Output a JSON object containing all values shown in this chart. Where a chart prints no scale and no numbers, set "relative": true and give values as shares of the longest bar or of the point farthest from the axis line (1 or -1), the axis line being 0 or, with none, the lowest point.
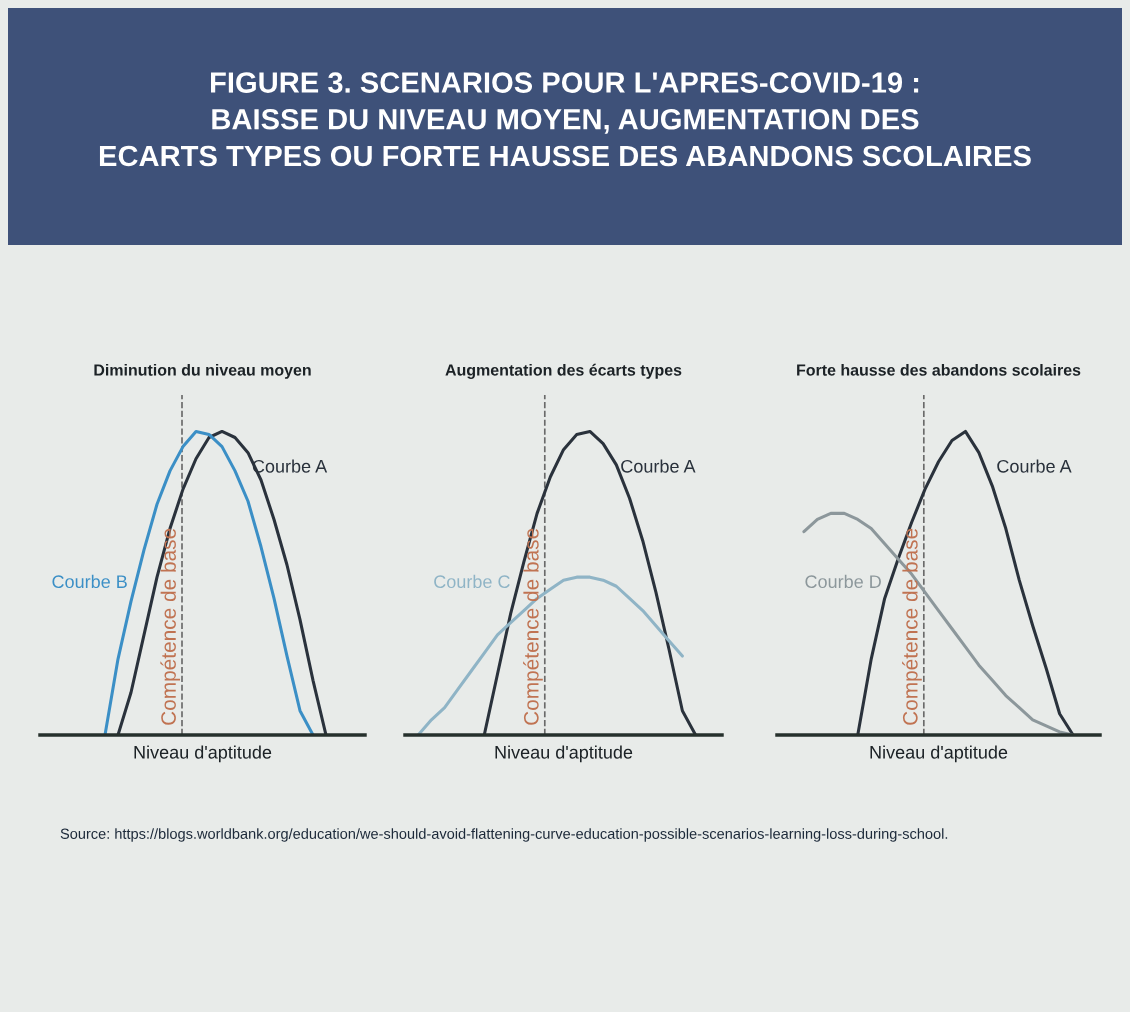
{
  "chart_data": [
    {
      "type": "other",
      "title": "FIGURE 3. SCENARIOS POUR L'APRES-COVID-19 :\nBAISSE DU NIVEAU MOYEN, AUGMENTATION DES\nECARTS TYPES OU FORTE HAUSSE DES ABANDONS SCOLAIRES"
    },
    {
      "type": "line",
      "title": "Diminution du niveau moyen",
      "xlabel": "Niveau d'aptitude",
      "relative": true,
      "grid": false,
      "categories": [
        null,
        null,
        null,
        null,
        null,
        null,
        null,
        null,
        null,
        null,
        null,
        null,
        null,
        null,
        null,
        null,
        null,
        null,
        null,
        null,
        null,
        null,
        null,
        null,
        null,
        null
      ],
      "series": [
        {
          "name": "Courbe A",
          "color": "#2a323c",
          "values": [
            null,
            null,
            null,
            null,
            null,
            null,
            0,
            0.14,
            0.33,
            0.52,
            0.68,
            0.81,
            0.91,
            0.98,
            1.0,
            0.98,
            0.93,
            0.84,
            0.71,
            0.56,
            0.38,
            0.18,
            0,
            null,
            null,
            null
          ]
        },
        {
          "name": "Courbe B",
          "color": "#3b8fc6",
          "values": [
            null,
            null,
            null,
            null,
            null,
            0,
            0.25,
            0.44,
            0.61,
            0.76,
            0.87,
            0.95,
            1.0,
            0.99,
            0.95,
            0.87,
            0.77,
            0.62,
            0.45,
            0.26,
            0.08,
            0,
            null,
            null,
            null,
            null
          ]
        }
      ],
      "annotations": [
        "Compétence de base"
      ]
    },
    {
      "type": "line",
      "title": "Augmentation des écarts types",
      "xlabel": "Niveau d'aptitude",
      "relative": true,
      "grid": false,
      "categories": [
        null,
        null,
        null,
        null,
        null,
        null,
        null,
        null,
        null,
        null,
        null,
        null,
        null,
        null,
        null,
        null,
        null,
        null,
        null,
        null,
        null,
        null,
        null,
        null,
        null
      ],
      "series": [
        {
          "name": "Courbe A",
          "color": "#2a323c",
          "values": [
            null,
            null,
            null,
            null,
            null,
            null,
            0,
            0.2,
            0.4,
            0.57,
            0.73,
            0.85,
            0.94,
            0.99,
            1.0,
            0.96,
            0.89,
            0.78,
            0.64,
            0.47,
            0.28,
            0.08,
            0,
            null,
            null
          ]
        },
        {
          "name": "Courbe C",
          "color": "#8fb4c6",
          "values": [
            null,
            0,
            0.05,
            0.09,
            0.15,
            0.21,
            0.27,
            0.33,
            0.37,
            0.41,
            0.45,
            0.48,
            0.51,
            0.52,
            0.52,
            0.51,
            0.49,
            0.45,
            0.41,
            0.36,
            0.31,
            0.26,
            null,
            null,
            null
          ]
        }
      ],
      "annotations": [
        "Compétence de base"
      ]
    },
    {
      "type": "line",
      "title": "Forte hausse des abandons scolaires",
      "xlabel": "Niveau d'aptitude",
      "relative": true,
      "grid": false,
      "categories": [
        null,
        null,
        null,
        null,
        null,
        null,
        null,
        null,
        null,
        null,
        null,
        null,
        null,
        null,
        null,
        null,
        null,
        null,
        null,
        null,
        null,
        null,
        null,
        null,
        null
      ],
      "series": [
        {
          "name": "Courbe A",
          "color": "#2a323c",
          "values": [
            null,
            null,
            null,
            null,
            null,
            null,
            0,
            0.25,
            0.45,
            0.58,
            0.7,
            0.81,
            0.9,
            0.97,
            1.0,
            0.93,
            0.82,
            0.68,
            0.51,
            0.36,
            0.22,
            0.07,
            0,
            null,
            null
          ]
        },
        {
          "name": "Courbe D",
          "color": "#8c979b",
          "values": [
            null,
            null,
            0.67,
            0.71,
            0.73,
            0.73,
            0.71,
            0.68,
            0.63,
            0.58,
            0.53,
            0.47,
            0.41,
            0.35,
            0.29,
            0.23,
            0.18,
            0.13,
            0.09,
            0.05,
            0.03,
            0.01,
            0,
            null,
            null
          ]
        }
      ],
      "annotations": [
        "Compétence de base"
      ]
    },
    {
      "type": "other",
      "annotations": [
        "Source: https://blogs.worldbank.org/education/we-should-avoid-flattening-curve-education-possible-scenarios-learning-loss-during-school."
      ]
    }
  ]
}
